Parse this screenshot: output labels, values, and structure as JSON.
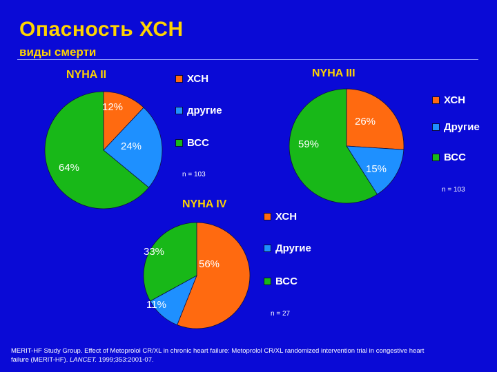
{
  "slide": {
    "title": "Опасность ХСН",
    "subtitle": "виды смерти"
  },
  "citation": {
    "text1": "MERIT-HF Study Group.  Effect of Metoprolol CR/XL in chronic heart failure: Metoprolol CR/XL randomized intervention trial in congestive heart failure (MERIT-HF).  ",
    "journal": "LANCET.",
    "text2": "  1999;353:2001-07."
  },
  "colors": {
    "background": "#0a0ad6",
    "title": "#ffd400",
    "chf": "#ff6a10",
    "other": "#1e90ff",
    "scd": "#18b818"
  },
  "chart_data": [
    {
      "type": "pie",
      "title": "NYHA II",
      "legend": [
        "ХСН",
        "другие",
        "ВСС"
      ],
      "n_label": "n = 103",
      "slices": [
        {
          "legend": "ХСН",
          "value": 12,
          "label": "12%"
        },
        {
          "legend": "другие",
          "value": 24,
          "label": "24%"
        },
        {
          "legend": "ВСС",
          "value": 64,
          "label": "64%"
        }
      ]
    },
    {
      "type": "pie",
      "title": "NYHA III",
      "legend": [
        "ХСН",
        "Другие",
        "ВСС"
      ],
      "n_label": "n = 103",
      "slices": [
        {
          "legend": "ХСН",
          "value": 26,
          "label": "26%"
        },
        {
          "legend": "Другие",
          "value": 15,
          "label": "15%"
        },
        {
          "legend": "ВСС",
          "value": 59,
          "label": "59%"
        }
      ]
    },
    {
      "type": "pie",
      "title": "NYHA IV",
      "legend": [
        "ХСН",
        "Другие",
        "ВСС"
      ],
      "n_label": "n = 27",
      "slices": [
        {
          "legend": "ХСН",
          "value": 56,
          "label": "56%"
        },
        {
          "legend": "Другие",
          "value": 11,
          "label": "11%"
        },
        {
          "legend": "ВСС",
          "value": 33,
          "label": "33%"
        }
      ]
    }
  ]
}
